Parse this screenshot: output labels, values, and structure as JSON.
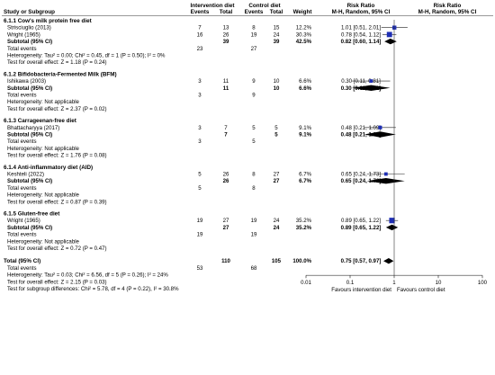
{
  "header": {
    "study_or_subgroup": "Study or Subgroup",
    "intervention": "Intervention diet",
    "control": "Control diet",
    "events": "Events",
    "total": "Total",
    "weight": "Weight",
    "risk_ratio": "Risk Ratio",
    "method": "M-H, Random, 95% CI"
  },
  "chart_data": {
    "type": "forest",
    "axis": {
      "scale": "log",
      "ticks": [
        0.01,
        0.1,
        1,
        10,
        100
      ],
      "tick_labels": [
        "0.01",
        "0.1",
        "1",
        "10",
        "100"
      ],
      "left_label": "Favours intervention diet",
      "right_label": "Favours control diet"
    },
    "subgroups": [
      {
        "title": "6.1.1 Cow's milk protein free diet",
        "studies": [
          {
            "name": "Strisciuglio (2013)",
            "ie": "7",
            "it": "13",
            "ce": "8",
            "ct": "15",
            "w": "12.2%",
            "text": "1.01 [0.51, 2.01]",
            "rr": 1.01,
            "lo": 0.51,
            "hi": 2.01,
            "weight": 12.2
          },
          {
            "name": "Wright (1965)",
            "ie": "16",
            "it": "26",
            "ce": "19",
            "ct": "24",
            "w": "30.3%",
            "text": "0.78 [0.54, 1.12]",
            "rr": 0.78,
            "lo": 0.54,
            "hi": 1.12,
            "weight": 30.3
          }
        ],
        "subtotal": {
          "label": "Subtotal (95% CI)",
          "it": "39",
          "ct": "39",
          "w": "42.5%",
          "text": "0.82 [0.60, 1.14]",
          "rr": 0.82,
          "lo": 0.6,
          "hi": 1.14
        },
        "total_events": {
          "label": "Total events",
          "i": "23",
          "c": "27"
        },
        "heterogeneity": "Heterogeneity: Tau² = 0.00; Chi² = 0.45, df = 1 (P = 0.50); I² = 0%",
        "overall": "Test for overall effect: Z = 1.18 (P = 0.24)"
      },
      {
        "title": "6.1.2 Bifidobacteria-Fermented Milk (BFM)",
        "studies": [
          {
            "name": "Ishikawa (2003)",
            "ie": "3",
            "it": "11",
            "ce": "9",
            "ct": "10",
            "w": "6.6%",
            "text": "0.30 [0.11, 0.81]",
            "rr": 0.3,
            "lo": 0.11,
            "hi": 0.81,
            "weight": 6.6
          }
        ],
        "subtotal": {
          "label": "Subtotal (95% CI)",
          "it": "11",
          "ct": "10",
          "w": "6.6%",
          "text": "0.30 [0.11, 0.81]",
          "rr": 0.3,
          "lo": 0.11,
          "hi": 0.81
        },
        "total_events": {
          "label": "Total events",
          "i": "3",
          "c": "9"
        },
        "heterogeneity": "Heterogeneity: Not applicable",
        "overall": "Test for overall effect: Z = 2.37 (P = 0.02)"
      },
      {
        "title": "6.1.3 Carrageenan-free diet",
        "studies": [
          {
            "name": "Bhattacharyya (2017)",
            "ie": "3",
            "it": "7",
            "ce": "5",
            "ct": "5",
            "w": "9.1%",
            "text": "0.48 [0.21, 1.09]",
            "rr": 0.48,
            "lo": 0.21,
            "hi": 1.09,
            "weight": 9.1
          }
        ],
        "subtotal": {
          "label": "Subtotal (95% CI)",
          "it": "7",
          "ct": "5",
          "w": "9.1%",
          "text": "0.48 [0.21, 1.09]",
          "rr": 0.48,
          "lo": 0.21,
          "hi": 1.09
        },
        "total_events": {
          "label": "Total events",
          "i": "3",
          "c": "5"
        },
        "heterogeneity": "Heterogeneity: Not applicable",
        "overall": "Test for overall effect: Z = 1.76 (P = 0.08)"
      },
      {
        "title": "6.1.4 Anti-inflammatory diet (AID)",
        "studies": [
          {
            "name": "Keshteli (2022)",
            "ie": "5",
            "it": "26",
            "ce": "8",
            "ct": "27",
            "w": "6.7%",
            "text": "0.65 [0.24, 1.73]",
            "rr": 0.65,
            "lo": 0.24,
            "hi": 1.73,
            "weight": 6.7
          }
        ],
        "subtotal": {
          "label": "Subtotal (95% CI)",
          "it": "26",
          "ct": "27",
          "w": "6.7%",
          "text": "0.65 [0.24, 1.73]",
          "rr": 0.65,
          "lo": 0.24,
          "hi": 1.73
        },
        "total_events": {
          "label": "Total events",
          "i": "5",
          "c": "8"
        },
        "heterogeneity": "Heterogeneity: Not applicable",
        "overall": "Test for overall effect: Z = 0.87 (P = 0.39)"
      },
      {
        "title": "6.1.5 Gluten-free diet",
        "studies": [
          {
            "name": "Wright (1965)",
            "ie": "19",
            "it": "27",
            "ce": "19",
            "ct": "24",
            "w": "35.2%",
            "text": "0.89 [0.65, 1.22]",
            "rr": 0.89,
            "lo": 0.65,
            "hi": 1.22,
            "weight": 35.2
          }
        ],
        "subtotal": {
          "label": "Subtotal (95% CI)",
          "it": "27",
          "ct": "24",
          "w": "35.2%",
          "text": "0.89 [0.65, 1.22]",
          "rr": 0.89,
          "lo": 0.65,
          "hi": 1.22
        },
        "total_events": {
          "label": "Total events",
          "i": "19",
          "c": "19"
        },
        "heterogeneity": "Heterogeneity: Not applicable",
        "overall": "Test for overall effect: Z = 0.72 (P = 0.47)"
      }
    ],
    "total": {
      "label": "Total (95% CI)",
      "it": "110",
      "ct": "105",
      "w": "100.0%",
      "text": "0.75 [0.57, 0.97]",
      "rr": 0.75,
      "lo": 0.57,
      "hi": 0.97,
      "total_events": {
        "label": "Total events",
        "i": "53",
        "c": "68"
      },
      "heterogeneity": "Heterogeneity: Tau² = 0.03; Chi² = 6.56, df = 5 (P = 0.26); I² = 24%",
      "overall": "Test for overall effect: Z = 2.15 (P = 0.03)",
      "subgroup_diff": "Test for subgroup differences: Chi² = 5.78, df = 4 (P = 0.22), I² = 30.8%"
    },
    "colors": {
      "study_marker": "#1f2fb5",
      "diamond": "#000000",
      "line": "#555555"
    }
  }
}
